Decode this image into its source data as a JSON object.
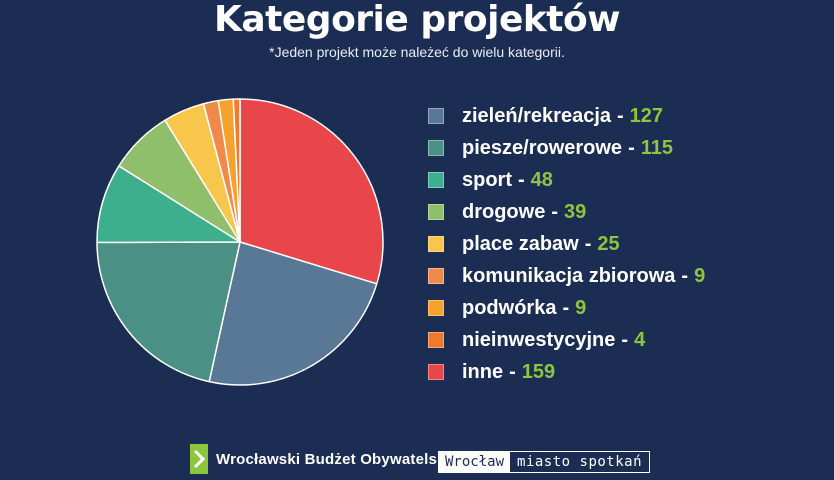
{
  "title": "Kategorie projektów",
  "subtitle": "*Jeden projekt może należeć do wielu kategorii.",
  "separator": "-",
  "chart_data": {
    "type": "pie",
    "title": "Kategorie projektów",
    "slices": [
      {
        "label": "zieleń/rekreacja",
        "value": 127,
        "color": "#587895"
      },
      {
        "label": "piesze/rowerowe",
        "value": 115,
        "color": "#4a9085"
      },
      {
        "label": "sport",
        "value": 48,
        "color": "#3daf8c"
      },
      {
        "label": "drogowe",
        "value": 39,
        "color": "#8fbf6a"
      },
      {
        "label": "place zabaw",
        "value": 25,
        "color": "#f7c64b"
      },
      {
        "label": "komunikacja zbiorowa",
        "value": 9,
        "color": "#f08a4b"
      },
      {
        "label": "podwórka",
        "value": 9,
        "color": "#f5a12b"
      },
      {
        "label": "nieinwestycyjne",
        "value": 4,
        "color": "#f07a2f"
      },
      {
        "label": "inne",
        "value": 159,
        "color": "#e8464b"
      }
    ],
    "legend_position": "right"
  },
  "footer": {
    "left_logo_text": "Wrocławski Budżet Obywatelski",
    "right_logo_part1": "Wrocław",
    "right_logo_part2": "miasto spotkań"
  }
}
